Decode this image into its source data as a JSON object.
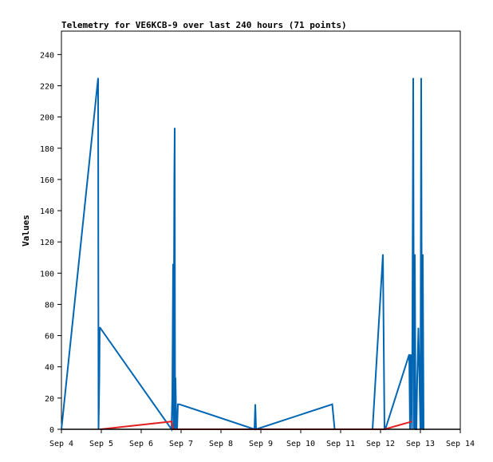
{
  "chart_data": {
    "type": "line",
    "title": "Telemetry for VE6KCB-9 over last 240 hours (71 points)",
    "xlabel": "",
    "ylabel": "Values",
    "xlim": [
      0,
      10
    ],
    "ylim": [
      0,
      255
    ],
    "x_ticks": [
      {
        "value": 0,
        "label": "Sep 4"
      },
      {
        "value": 1,
        "label": "Sep 5"
      },
      {
        "value": 2,
        "label": "Sep 6"
      },
      {
        "value": 3,
        "label": "Sep 7"
      },
      {
        "value": 4,
        "label": "Sep 8"
      },
      {
        "value": 5,
        "label": "Sep 9"
      },
      {
        "value": 6,
        "label": "Sep 10"
      },
      {
        "value": 7,
        "label": "Sep 11"
      },
      {
        "value": 8,
        "label": "Sep 12"
      },
      {
        "value": 9,
        "label": "Sep 13"
      },
      {
        "value": 10,
        "label": "Sep 14"
      }
    ],
    "y_ticks": [
      0,
      20,
      40,
      60,
      80,
      100,
      120,
      140,
      160,
      180,
      200,
      220,
      240
    ],
    "grid": false,
    "series": [
      {
        "color": "#0066b3",
        "x": [
          0.0,
          0.92,
          0.93,
          0.95,
          0.96,
          0.97,
          2.76,
          2.78,
          2.8,
          2.81,
          2.83,
          2.84,
          2.85,
          2.86,
          2.88,
          2.89,
          2.9,
          2.92,
          2.93,
          2.96,
          4.84,
          4.86,
          4.88,
          6.79,
          6.85,
          7.8,
          8.06,
          8.08,
          8.1,
          8.12,
          8.72,
          8.74,
          8.76,
          8.79,
          8.82,
          8.84,
          8.86,
          8.88,
          8.9,
          8.92,
          8.95,
          9.0,
          9.02,
          9.04,
          9.06,
          9.08,
          9.1
        ],
        "y": [
          0,
          225,
          0,
          32,
          65,
          65,
          0,
          21,
          106,
          0,
          161,
          193,
          0,
          33,
          0,
          0,
          0,
          16,
          16,
          16,
          0,
          16,
          0,
          16,
          0,
          0,
          112,
          56,
          0,
          0,
          48,
          0,
          48,
          0,
          225,
          0,
          112,
          0,
          0,
          32,
          65,
          0,
          225,
          0,
          112,
          0,
          0
        ]
      },
      {
        "color": "#e02020",
        "x": [
          0.97,
          2.76,
          2.8,
          8.1,
          8.79
        ],
        "y": [
          0,
          5,
          0,
          0,
          5
        ]
      },
      {
        "color": "#000000",
        "x": [
          0.0,
          10.0
        ],
        "y": [
          0,
          0
        ]
      }
    ]
  }
}
